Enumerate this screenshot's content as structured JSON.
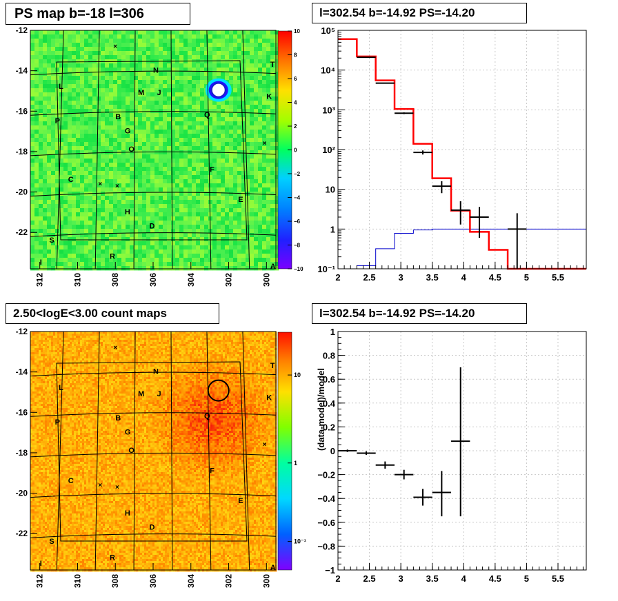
{
  "panels": {
    "ps_map": {
      "title": "PS map b=-18 l=306"
    },
    "count_map": {
      "title": "2.50<logE<3.00 count maps"
    },
    "spectrum": {
      "title": "l=302.54 b=-14.92 PS=-14.20"
    },
    "residual": {
      "title": "l=302.54 b=-14.92 PS=-14.20"
    }
  },
  "colors": {
    "data": "#000000",
    "model": "#ff0000",
    "background": "#0000cc",
    "grid": "#c8c8c8",
    "source_circle_ps": "#1a1acc",
    "source_circle_counts": "#000000"
  },
  "chart_data": [
    {
      "id": "ps_map",
      "type": "heatmap",
      "x_ticks": [
        "312",
        "310",
        "308",
        "306",
        "304",
        "302",
        "300"
      ],
      "y_ticks": [
        "-12",
        "-14",
        "-16",
        "-18",
        "-20",
        "-22"
      ],
      "xlim": [
        312.5,
        299.5
      ],
      "ylim": [
        -23.8,
        -12
      ],
      "colorbar": {
        "ticks": [
          "10",
          "8",
          "6",
          "4",
          "2",
          "0",
          "−2",
          "−4",
          "−6",
          "−8",
          "−10"
        ],
        "range": [
          -10,
          10
        ]
      },
      "source": {
        "l": 302.54,
        "b": -14.92
      },
      "labels": [
        {
          "t": "N",
          "l": 306.0,
          "b": -14.1
        },
        {
          "t": "M",
          "l": 306.8,
          "b": -15.2
        },
        {
          "t": "J",
          "l": 305.8,
          "b": -15.2
        },
        {
          "t": "L",
          "l": 311.0,
          "b": -14.9
        },
        {
          "t": "T",
          "l": 299.8,
          "b": -13.8
        },
        {
          "t": "K",
          "l": 300.0,
          "b": -15.4
        },
        {
          "t": "P",
          "l": 311.2,
          "b": -16.6
        },
        {
          "t": "B",
          "l": 308.0,
          "b": -16.4
        },
        {
          "t": "Q",
          "l": 303.3,
          "b": -16.3
        },
        {
          "t": "G",
          "l": 307.5,
          "b": -17.1
        },
        {
          "t": "O",
          "l": 307.3,
          "b": -18.0
        },
        {
          "t": "F",
          "l": 303.0,
          "b": -19.0
        },
        {
          "t": "C",
          "l": 310.5,
          "b": -19.5
        },
        {
          "t": "E",
          "l": 301.5,
          "b": -20.5
        },
        {
          "t": "H",
          "l": 307.5,
          "b": -21.1
        },
        {
          "t": "D",
          "l": 306.2,
          "b": -21.8
        },
        {
          "t": "S",
          "l": 311.5,
          "b": -22.5
        },
        {
          "t": "R",
          "l": 308.3,
          "b": -23.3
        },
        {
          "t": "I",
          "l": 312.0,
          "b": -23.6
        },
        {
          "t": "A",
          "l": 299.8,
          "b": -23.8
        }
      ]
    },
    {
      "id": "count_map",
      "type": "heatmap",
      "x_ticks": [
        "312",
        "310",
        "308",
        "306",
        "304",
        "302",
        "300"
      ],
      "y_ticks": [
        "-12",
        "-14",
        "-16",
        "-18",
        "-20",
        "-22"
      ],
      "xlim": [
        312.5,
        299.5
      ],
      "ylim": [
        -23.8,
        -12
      ],
      "colorbar": {
        "ticks": [
          "10",
          "1",
          "10⁻¹"
        ],
        "scale": "log"
      },
      "source": {
        "l": 302.54,
        "b": -14.92
      }
    },
    {
      "id": "spectrum",
      "type": "line",
      "x_ticks": [
        "2",
        "2.5",
        "3",
        "3.5",
        "4",
        "4.5",
        "5",
        "5.5"
      ],
      "y_ticks": [
        "10⁵",
        "10⁴",
        "10³",
        "10²",
        "10",
        "1",
        "10⁻¹"
      ],
      "xlim": [
        2,
        5.95
      ],
      "ylim": [
        0.1,
        100000
      ],
      "yscale": "log",
      "grid": true,
      "model_steps": [
        [
          2.0,
          60000
        ],
        [
          2.3,
          22000
        ],
        [
          2.6,
          5500
        ],
        [
          2.9,
          1050
        ],
        [
          3.2,
          140
        ],
        [
          3.5,
          19
        ],
        [
          3.8,
          2.9
        ],
        [
          4.1,
          0.85
        ],
        [
          4.4,
          0.3
        ],
        [
          4.7,
          0.1
        ]
      ],
      "background_steps": [
        [
          2.3,
          0.12
        ],
        [
          2.6,
          0.32
        ],
        [
          2.9,
          0.78
        ],
        [
          3.2,
          0.95
        ],
        [
          3.5,
          1.0
        ],
        [
          5.95,
          1.0
        ]
      ],
      "data_points": [
        {
          "x": 2.45,
          "y": 21000,
          "xerr": 0.15,
          "ylo": 20500,
          "yhi": 21500
        },
        {
          "x": 2.75,
          "y": 4700,
          "xerr": 0.15,
          "ylo": 4600,
          "yhi": 4800
        },
        {
          "x": 3.05,
          "y": 820,
          "xerr": 0.15,
          "ylo": 780,
          "yhi": 860
        },
        {
          "x": 3.35,
          "y": 85,
          "xerr": 0.15,
          "ylo": 75,
          "yhi": 95
        },
        {
          "x": 3.65,
          "y": 12,
          "xerr": 0.15,
          "ylo": 8,
          "yhi": 16
        },
        {
          "x": 3.95,
          "y": 3,
          "xerr": 0.15,
          "ylo": 1.3,
          "yhi": 5
        },
        {
          "x": 4.25,
          "y": 2,
          "xerr": 0.15,
          "ylo": 0.6,
          "yhi": 3.6
        },
        {
          "x": 4.85,
          "y": 1,
          "xerr": 0.15,
          "ylo": 0.1,
          "yhi": 2.5
        }
      ]
    },
    {
      "id": "residual",
      "type": "scatter",
      "ylabel": "(data-model)/model",
      "x_ticks": [
        "2",
        "2.5",
        "3",
        "3.5",
        "4",
        "4.5",
        "5",
        "5.5"
      ],
      "y_ticks": [
        "1",
        "0.8",
        "0.6",
        "0.4",
        "0.2",
        "0",
        "−0.2",
        "−0.4",
        "−0.6",
        "−0.8",
        "−1"
      ],
      "xlim": [
        2,
        5.95
      ],
      "ylim": [
        -1,
        1
      ],
      "grid": true,
      "data_points": [
        {
          "x": 2.15,
          "y": 0.0,
          "xerr": 0.15,
          "ylo": -0.01,
          "yhi": 0.01
        },
        {
          "x": 2.45,
          "y": -0.02,
          "xerr": 0.15,
          "ylo": -0.035,
          "yhi": -0.005
        },
        {
          "x": 2.75,
          "y": -0.12,
          "xerr": 0.15,
          "ylo": -0.15,
          "yhi": -0.09
        },
        {
          "x": 3.05,
          "y": -0.2,
          "xerr": 0.15,
          "ylo": -0.24,
          "yhi": -0.16
        },
        {
          "x": 3.35,
          "y": -0.39,
          "xerr": 0.15,
          "ylo": -0.46,
          "yhi": -0.32
        },
        {
          "x": 3.65,
          "y": -0.35,
          "xerr": 0.15,
          "ylo": -0.55,
          "yhi": -0.17
        },
        {
          "x": 3.95,
          "y": 0.08,
          "xerr": 0.15,
          "ylo": -0.55,
          "yhi": 0.7
        }
      ]
    }
  ]
}
